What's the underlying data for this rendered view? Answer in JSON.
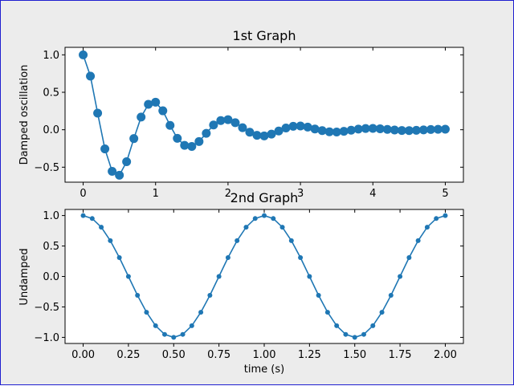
{
  "colors": {
    "series": "#1f77b4",
    "figure_bg": "#ececec",
    "border": "#1f1fd0"
  },
  "chart_data": [
    {
      "type": "line",
      "title": "1st Graph",
      "xlabel": "",
      "ylabel": "Damped oscillation",
      "xlim": [
        -0.25,
        5.25
      ],
      "ylim": [
        -0.7,
        1.1
      ],
      "xticks": [
        "0",
        "1",
        "2",
        "3",
        "4",
        "5"
      ],
      "yticks": [
        "1.0",
        "0.5",
        "0.0",
        "−0.5"
      ],
      "xtick_values": [
        0,
        1,
        2,
        3,
        4,
        5
      ],
      "ytick_values": [
        1.0,
        0.5,
        0.0,
        -0.5
      ],
      "grid": false,
      "marker": "large-circle",
      "x": [
        0.0,
        0.1,
        0.2,
        0.3,
        0.4,
        0.5,
        0.6,
        0.7,
        0.8,
        0.9,
        1.0,
        1.1,
        1.2,
        1.3,
        1.4,
        1.5,
        1.6,
        1.7,
        1.8,
        1.9,
        2.0,
        2.1,
        2.2,
        2.3,
        2.4,
        2.5,
        2.6,
        2.7,
        2.8,
        2.9,
        3.0,
        3.1,
        3.2,
        3.3,
        3.4,
        3.5,
        3.6,
        3.7,
        3.8,
        3.9,
        4.0,
        4.1,
        4.2,
        4.3,
        4.4,
        4.5,
        4.6,
        4.7,
        4.8,
        4.9,
        5.0
      ],
      "y": [
        1.0,
        0.716,
        0.221,
        -0.256,
        -0.555,
        -0.607,
        -0.427,
        -0.118,
        0.169,
        0.339,
        0.368,
        0.253,
        0.058,
        -0.115,
        -0.208,
        -0.223,
        -0.157,
        -0.048,
        0.063,
        0.123,
        0.135,
        0.094,
        0.027,
        -0.033,
        -0.075,
        -0.082,
        -0.058,
        -0.017,
        0.023,
        0.046,
        0.05,
        0.035,
        0.01,
        -0.012,
        -0.027,
        -0.03,
        -0.021,
        -0.006,
        0.009,
        0.017,
        0.018,
        0.013,
        0.004,
        -0.004,
        -0.01,
        -0.011,
        -0.008,
        -0.002,
        0.003,
        0.006,
        0.007
      ]
    },
    {
      "type": "line",
      "title": "2nd Graph",
      "xlabel": "time (s)",
      "ylabel": "Undamped",
      "xlim": [
        -0.1,
        2.1
      ],
      "ylim": [
        -1.1,
        1.1
      ],
      "xticks": [
        "0.00",
        "0.25",
        "0.50",
        "0.75",
        "1.00",
        "1.25",
        "1.50",
        "1.75",
        "2.00"
      ],
      "yticks": [
        "1.0",
        "0.5",
        "0.0",
        "−0.5",
        "−1.0"
      ],
      "xtick_values": [
        0,
        0.25,
        0.5,
        0.75,
        1.0,
        1.25,
        1.5,
        1.75,
        2.0
      ],
      "ytick_values": [
        1.0,
        0.5,
        0.0,
        -0.5,
        -1.0
      ],
      "grid": false,
      "marker": "small-dot",
      "x": [
        0.0,
        0.05,
        0.1,
        0.15,
        0.2,
        0.25,
        0.3,
        0.35,
        0.4,
        0.45,
        0.5,
        0.55,
        0.6,
        0.65,
        0.7,
        0.75,
        0.8,
        0.85,
        0.9,
        0.95,
        1.0,
        1.05,
        1.1,
        1.15,
        1.2,
        1.25,
        1.3,
        1.35,
        1.4,
        1.45,
        1.5,
        1.55,
        1.6,
        1.65,
        1.7,
        1.75,
        1.8,
        1.85,
        1.9,
        1.95,
        2.0
      ],
      "y": [
        1.0,
        0.951,
        0.809,
        0.588,
        0.309,
        0.0,
        -0.309,
        -0.588,
        -0.809,
        -0.951,
        -1.0,
        -0.951,
        -0.809,
        -0.588,
        -0.309,
        0.0,
        0.309,
        0.588,
        0.809,
        0.951,
        1.0,
        0.951,
        0.809,
        0.588,
        0.309,
        0.0,
        -0.309,
        -0.588,
        -0.809,
        -0.951,
        -1.0,
        -0.951,
        -0.809,
        -0.588,
        -0.309,
        0.0,
        0.309,
        0.588,
        0.809,
        0.951,
        1.0
      ]
    }
  ]
}
